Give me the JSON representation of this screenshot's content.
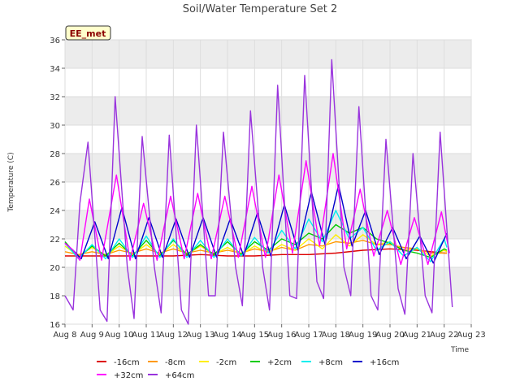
{
  "chart_data": {
    "type": "line",
    "title": "Soil/Water Temperature Set 2",
    "xlabel": "Time",
    "ylabel": "Temperature (C)",
    "site_label": "EE_met",
    "ylim": [
      16,
      36
    ],
    "yticks": [
      16,
      18,
      20,
      22,
      24,
      26,
      28,
      30,
      32,
      34,
      36
    ],
    "x_domain": [
      8,
      23
    ],
    "xticks": [
      {
        "x": 8,
        "label": "Aug 8"
      },
      {
        "x": 9,
        "label": "Aug 9"
      },
      {
        "x": 10,
        "label": "Aug 10"
      },
      {
        "x": 11,
        "label": "Aug 11"
      },
      {
        "x": 12,
        "label": "Aug 12"
      },
      {
        "x": 13,
        "label": "Aug 13"
      },
      {
        "x": 14,
        "label": "Aug 14"
      },
      {
        "x": 15,
        "label": "Aug 15"
      },
      {
        "x": 16,
        "label": "Aug 16"
      },
      {
        "x": 17,
        "label": "Aug 17"
      },
      {
        "x": 18,
        "label": "Aug 18"
      },
      {
        "x": 19,
        "label": "Aug 19"
      },
      {
        "x": 20,
        "label": "Aug 20"
      },
      {
        "x": 21,
        "label": "Aug 21"
      },
      {
        "x": 22,
        "label": "Aug 22"
      },
      {
        "x": 23,
        "label": "Aug 23"
      }
    ],
    "grid": true,
    "legend_position": "bottom",
    "series": [
      {
        "name": "-16cm",
        "color": "#dd0000",
        "x": [
          8.0,
          9.0,
          10.0,
          11.0,
          12.0,
          13.0,
          14.0,
          15.0,
          16.0,
          17.0,
          18.0,
          19.0,
          20.0,
          21.0,
          22.0,
          22.1
        ],
        "y": [
          20.8,
          20.8,
          20.8,
          20.8,
          20.8,
          20.9,
          20.8,
          20.8,
          20.9,
          20.9,
          21.0,
          21.2,
          21.3,
          21.2,
          21.0,
          21.0
        ]
      },
      {
        "name": "-8cm",
        "color": "#ff9900",
        "x": [
          8.0,
          8.5,
          9.0,
          9.5,
          10.0,
          10.5,
          11.0,
          11.5,
          12.0,
          12.5,
          13.0,
          13.5,
          14.0,
          14.5,
          15.0,
          15.5,
          16.0,
          16.5,
          17.0,
          17.5,
          18.0,
          18.5,
          19.0,
          19.5,
          20.0,
          20.5,
          21.0,
          21.5,
          22.0,
          22.1
        ],
        "y": [
          21.1,
          20.9,
          21.1,
          20.9,
          21.2,
          21.0,
          21.3,
          21.0,
          21.3,
          21.0,
          21.2,
          21.0,
          21.2,
          21.0,
          21.3,
          21.1,
          21.4,
          21.2,
          21.6,
          21.5,
          21.8,
          21.7,
          21.9,
          21.6,
          21.6,
          21.4,
          21.3,
          21.0,
          21.0,
          21.0
        ]
      },
      {
        "name": "-2cm",
        "color": "#ffee00",
        "x": [
          8.0,
          8.5,
          9.0,
          9.5,
          10.0,
          10.5,
          11.0,
          11.5,
          12.0,
          12.5,
          13.0,
          13.5,
          14.0,
          14.5,
          15.0,
          15.5,
          16.0,
          16.5,
          17.0,
          17.5,
          18.0,
          18.5,
          19.0,
          19.5,
          20.0,
          20.5,
          21.0,
          21.5,
          22.0,
          22.1
        ],
        "y": [
          21.5,
          20.8,
          21.4,
          20.8,
          21.5,
          20.9,
          21.6,
          20.9,
          21.6,
          20.9,
          21.5,
          20.9,
          21.4,
          20.9,
          21.5,
          21.0,
          21.6,
          21.2,
          22.0,
          21.3,
          22.3,
          21.5,
          22.3,
          21.6,
          21.8,
          21.2,
          21.3,
          20.8,
          21.2,
          21.1
        ]
      },
      {
        "name": "+2cm",
        "color": "#00cc00",
        "x": [
          8.0,
          8.5,
          9.0,
          9.5,
          10.0,
          10.5,
          11.0,
          11.5,
          12.0,
          12.5,
          13.0,
          13.5,
          14.0,
          14.5,
          15.0,
          15.5,
          16.0,
          16.5,
          17.0,
          17.5,
          18.0,
          18.5,
          19.0,
          19.5,
          20.0,
          20.5,
          21.0,
          21.5,
          22.0,
          22.1
        ],
        "y": [
          21.8,
          20.7,
          21.5,
          20.8,
          21.7,
          20.8,
          21.9,
          20.8,
          21.9,
          20.9,
          21.6,
          20.9,
          21.8,
          20.9,
          21.8,
          21.2,
          22.0,
          21.6,
          22.4,
          22.0,
          23.0,
          22.4,
          22.8,
          22.0,
          21.7,
          21.2,
          21.0,
          20.7,
          21.3,
          21.2
        ]
      },
      {
        "name": "+8cm",
        "color": "#00eeee",
        "x": [
          8.0,
          8.5,
          9.0,
          9.5,
          10.0,
          10.5,
          11.0,
          11.5,
          12.0,
          12.5,
          13.0,
          13.5,
          14.0,
          14.5,
          15.0,
          15.5,
          16.0,
          16.5,
          17.0,
          17.5,
          18.0,
          18.5,
          19.0,
          19.5,
          20.0,
          20.5,
          21.0,
          21.5,
          22.0,
          22.1
        ],
        "y": [
          21.7,
          20.6,
          21.6,
          20.6,
          22.0,
          20.7,
          22.2,
          20.7,
          22.0,
          20.7,
          21.9,
          20.7,
          22.0,
          20.8,
          22.1,
          21.0,
          22.6,
          21.3,
          23.4,
          21.8,
          24.0,
          22.0,
          22.8,
          21.2,
          21.8,
          20.8,
          21.4,
          20.4,
          22.0,
          21.4
        ]
      },
      {
        "name": "+16cm",
        "color": "#0000cc",
        "x": [
          8.0,
          8.3,
          8.6,
          9.1,
          9.6,
          10.1,
          10.6,
          11.1,
          11.6,
          12.1,
          12.6,
          13.1,
          13.6,
          14.1,
          14.6,
          15.1,
          15.6,
          16.1,
          16.6,
          17.1,
          17.6,
          18.1,
          18.6,
          19.1,
          19.6,
          20.1,
          20.6,
          21.1,
          21.6,
          22.1
        ],
        "y": [
          21.7,
          21.2,
          20.6,
          23.2,
          20.6,
          24.2,
          20.6,
          23.5,
          20.7,
          23.4,
          20.7,
          23.5,
          20.7,
          23.4,
          20.8,
          23.8,
          20.8,
          24.4,
          21.2,
          25.3,
          21.6,
          25.8,
          21.5,
          24.0,
          20.9,
          22.8,
          20.6,
          22.2,
          20.3,
          22.4
        ]
      },
      {
        "name": "+32cm",
        "color": "#ff00ff",
        "x": [
          8.0,
          8.3,
          8.55,
          8.9,
          9.35,
          9.9,
          10.4,
          10.9,
          11.4,
          11.9,
          12.4,
          12.9,
          13.4,
          13.9,
          14.4,
          14.9,
          15.4,
          15.9,
          16.4,
          16.9,
          17.4,
          17.9,
          18.4,
          18.9,
          19.4,
          19.9,
          20.4,
          20.9,
          21.4,
          21.9,
          22.2
        ],
        "y": [
          21.7,
          21.2,
          20.5,
          24.8,
          20.5,
          26.5,
          20.5,
          24.5,
          20.5,
          25.0,
          20.6,
          25.2,
          20.6,
          25.0,
          20.7,
          25.7,
          20.7,
          26.5,
          21.0,
          27.5,
          21.5,
          28.0,
          21.3,
          25.5,
          20.8,
          24.0,
          20.2,
          23.5,
          20.2,
          23.9,
          21.0
        ]
      },
      {
        "name": "+64cm",
        "color": "#9933dd",
        "x": [
          8.0,
          8.3,
          8.55,
          8.85,
          9.3,
          9.55,
          9.85,
          10.3,
          10.55,
          10.85,
          11.3,
          11.55,
          11.85,
          12.3,
          12.55,
          12.85,
          13.3,
          13.55,
          13.85,
          14.3,
          14.55,
          14.85,
          15.3,
          15.55,
          15.85,
          16.3,
          16.55,
          16.85,
          17.3,
          17.55,
          17.85,
          18.3,
          18.55,
          18.85,
          19.3,
          19.55,
          19.85,
          20.3,
          20.55,
          20.85,
          21.3,
          21.55,
          21.85,
          22.3
        ],
        "y": [
          18.0,
          17.0,
          24.5,
          28.8,
          17.0,
          16.2,
          32.0,
          20.0,
          16.4,
          29.2,
          20.0,
          16.8,
          29.3,
          17.0,
          16.0,
          30.0,
          18.0,
          18.0,
          29.5,
          20.0,
          17.3,
          31.0,
          20.0,
          17.0,
          32.8,
          18.0,
          17.8,
          33.5,
          19.0,
          17.8,
          34.6,
          20.0,
          18.0,
          31.3,
          18.0,
          17.0,
          29.0,
          18.5,
          16.7,
          28.0,
          18.0,
          16.8,
          29.5,
          17.2
        ]
      }
    ]
  }
}
